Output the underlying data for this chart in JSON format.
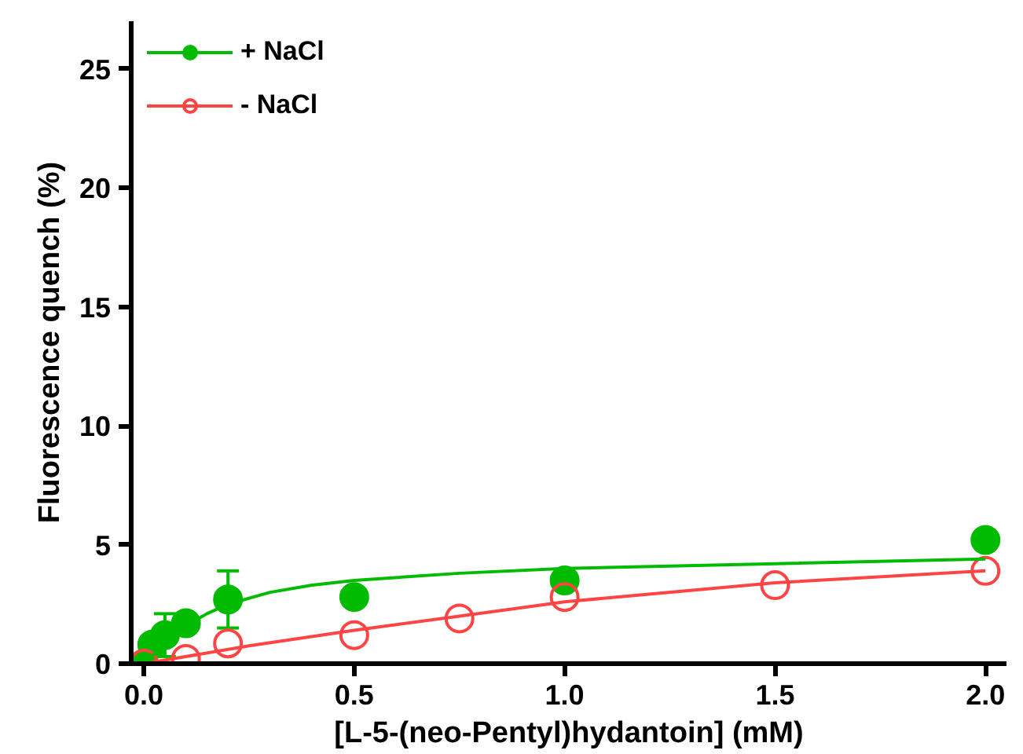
{
  "chart_data": {
    "type": "scatter",
    "xlabel": "[L-5-(neo-Pentyl)hydantoin] (mM)",
    "ylabel": "Fluorescence quench (%)",
    "xlim": [
      -0.03,
      2.05
    ],
    "ylim": [
      0,
      27
    ],
    "xticks": [
      {
        "value": 0,
        "label": "0.0"
      },
      {
        "value": 0.5,
        "label": "0.5"
      },
      {
        "value": 1,
        "label": "1.0"
      },
      {
        "value": 1.5,
        "label": "1.5"
      },
      {
        "value": 2,
        "label": "2.0"
      }
    ],
    "yticks": [
      0,
      5,
      10,
      15,
      20,
      25
    ],
    "grid": false,
    "legend": "top left",
    "series": [
      {
        "name": "+ NaCl",
        "marker": "circle",
        "color": "#00bb00",
        "x": [
          0,
          0.02,
          0.05,
          0.1,
          0.2,
          0.5,
          1.0,
          2.0
        ],
        "values": [
          0,
          0.8,
          1.2,
          1.7,
          2.7,
          2.8,
          3.5,
          5.2
        ],
        "errors": [
          null,
          null,
          0.9,
          null,
          1.2,
          null,
          null,
          null
        ]
      },
      {
        "name": "- NaCl",
        "marker": "circle_open",
        "color": "#ff4444",
        "x": [
          0,
          0.1,
          0.2,
          0.5,
          0.75,
          1.0,
          1.5,
          2.0
        ],
        "values": [
          0,
          0.2,
          0.85,
          1.2,
          1.9,
          2.8,
          3.3,
          3.9
        ]
      },
      {
        "type": "line",
        "color": "#00bb00",
        "x": [
          0,
          0.05,
          0.1,
          0.15,
          0.2,
          0.3,
          0.4,
          0.5,
          0.75,
          1.0,
          1.5,
          2.0
        ],
        "values": [
          0,
          0.8,
          1.6,
          2.1,
          2.5,
          3.0,
          3.3,
          3.5,
          3.8,
          4.0,
          4.2,
          4.4
        ]
      },
      {
        "type": "line",
        "color": "#ff4444",
        "x": [
          0,
          0.25,
          0.5,
          0.75,
          1.0,
          1.5,
          2.0
        ],
        "values": [
          0,
          0.75,
          1.4,
          2.0,
          2.6,
          3.4,
          3.9
        ]
      }
    ]
  }
}
